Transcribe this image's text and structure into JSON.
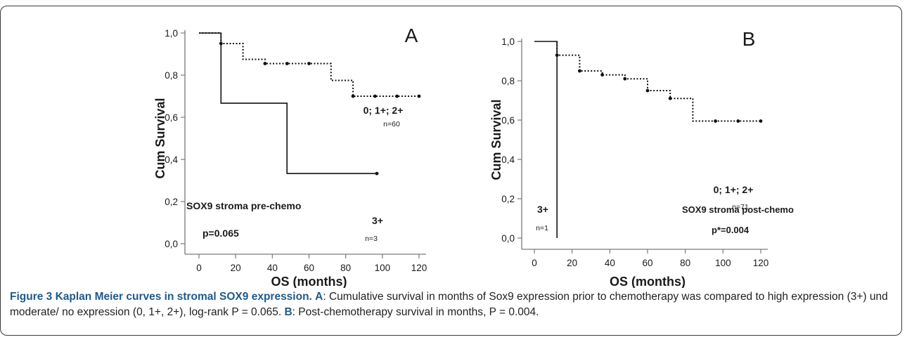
{
  "chart_data": [
    {
      "type": "line",
      "panel_label": "A",
      "xlabel": "OS (months)",
      "ylabel": "Cum Survival",
      "xlim": [
        0,
        120
      ],
      "ylim": [
        0,
        1
      ],
      "xticks": [
        "0",
        "20",
        "40",
        "60",
        "80",
        "100",
        "120"
      ],
      "yticks": [
        "0,0",
        "0,2",
        "0,4",
        "0,6",
        "0,8",
        "1,0"
      ],
      "annotations": [
        "SOX9 stroma pre-chemo",
        "p=0.065"
      ],
      "series": [
        {
          "name": "0; 1+; 2+",
          "n_label": "n=60",
          "style": "dotted",
          "x": [
            0,
            12,
            12,
            24,
            24,
            36,
            36,
            72,
            72,
            84,
            84,
            120
          ],
          "y": [
            1.0,
            1.0,
            0.95,
            0.95,
            0.875,
            0.875,
            0.855,
            0.855,
            0.775,
            0.775,
            0.7,
            0.7
          ],
          "censored": [
            [
              12,
              0.95
            ],
            [
              36,
              0.855
            ],
            [
              48,
              0.855
            ],
            [
              60,
              0.855
            ],
            [
              84,
              0.7
            ],
            [
              96,
              0.7
            ],
            [
              108,
              0.7
            ],
            [
              120,
              0.7
            ]
          ]
        },
        {
          "name": "3+",
          "n_label": "n=3",
          "style": "solid",
          "x": [
            0,
            12,
            12,
            48,
            48,
            97
          ],
          "y": [
            1.0,
            1.0,
            0.667,
            0.667,
            0.333,
            0.333
          ],
          "censored": [
            [
              97,
              0.333
            ]
          ]
        }
      ]
    },
    {
      "type": "line",
      "panel_label": "B",
      "xlabel": "OS (months)",
      "ylabel": "Cum Survival",
      "xlim": [
        0,
        120
      ],
      "ylim": [
        0,
        1
      ],
      "xticks": [
        "0",
        "20",
        "40",
        "60",
        "80",
        "100",
        "120"
      ],
      "yticks": [
        "0,0",
        "0,2",
        "0,4",
        "0,6",
        "0,8",
        "1,0"
      ],
      "annotations": [
        "SOX9 stroma post-chemo",
        "p*=0.004"
      ],
      "series": [
        {
          "name": "0; 1+; 2+",
          "n_label": "n=71",
          "style": "dotted",
          "x": [
            12,
            12,
            24,
            24,
            36,
            36,
            48,
            48,
            60,
            60,
            72,
            72,
            84,
            84,
            120
          ],
          "y": [
            1.0,
            0.93,
            0.93,
            0.85,
            0.85,
            0.83,
            0.83,
            0.81,
            0.81,
            0.75,
            0.75,
            0.71,
            0.71,
            0.595,
            0.595
          ],
          "censored": [
            [
              12,
              0.93
            ],
            [
              24,
              0.85
            ],
            [
              36,
              0.83
            ],
            [
              48,
              0.81
            ],
            [
              60,
              0.75
            ],
            [
              72,
              0.71
            ],
            [
              96,
              0.595
            ],
            [
              108,
              0.595
            ],
            [
              120,
              0.595
            ]
          ]
        },
        {
          "name": "3+",
          "n_label": "n=1",
          "style": "solid",
          "x": [
            0,
            12,
            12
          ],
          "y": [
            1.0,
            1.0,
            0.0
          ],
          "censored": []
        }
      ]
    }
  ],
  "caption": {
    "figure_title": "Figure 3 Kaplan Meier curves in stromal SOX9 expression.",
    "a_label": "A",
    "a_text": ": Cumulative survival in months of Sox9 expression prior to chemotherapy was compared to high expression (3+) und moderate/ no expression (0, 1+, 2+), log-rank P = 0.065.",
    "b_label": "B",
    "b_text": ": Post-chemotherapy survival in months, P = 0.004."
  }
}
